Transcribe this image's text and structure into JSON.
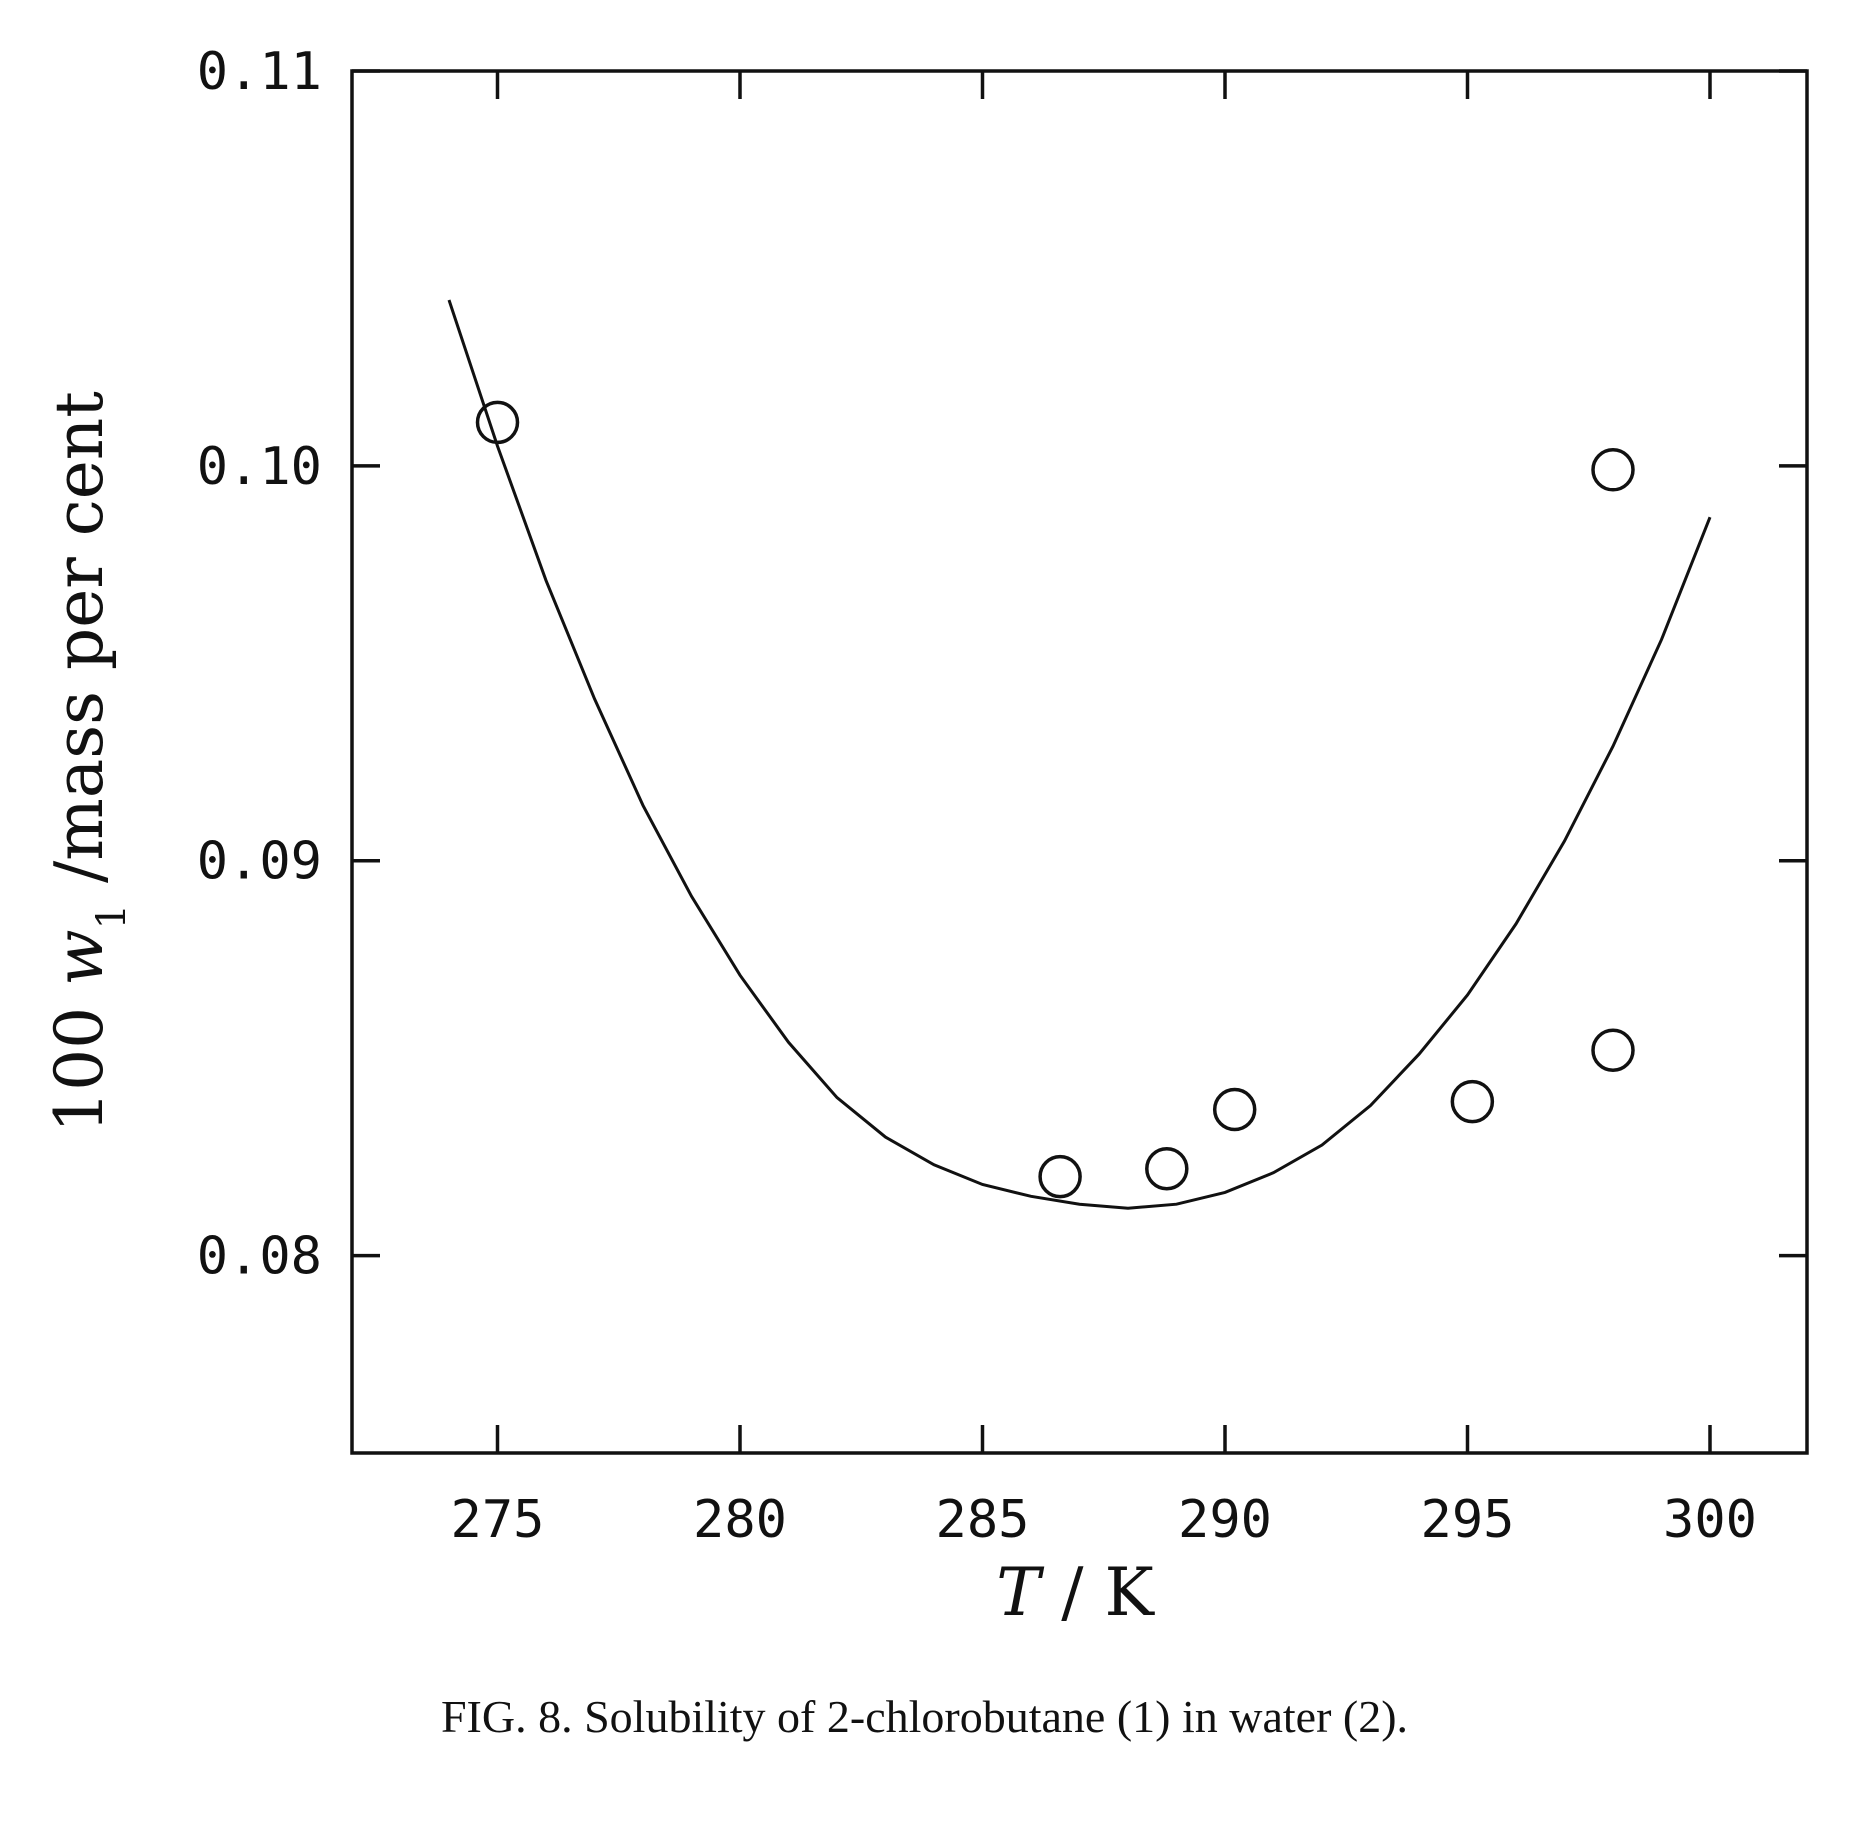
{
  "chart_data": {
    "type": "scatter",
    "x_axis": {
      "label_var": "T",
      "label_rest": " / K",
      "range": [
        272,
        302
      ],
      "ticks": [
        275,
        280,
        285,
        290,
        295,
        300
      ],
      "tick_labels": [
        "275",
        "280",
        "285",
        "290",
        "295",
        "300"
      ]
    },
    "y_axis": {
      "label_prefix": "100 ",
      "label_var": "w",
      "label_sub": "1",
      "label_rest": " /mass per cent",
      "range": [
        0.075,
        0.11
      ],
      "ticks": [
        0.08,
        0.09,
        0.1,
        0.11
      ],
      "tick_labels": [
        "0.08",
        "0.09",
        "0.10",
        "0.11"
      ]
    },
    "grid": false,
    "series": [
      {
        "kind": "points",
        "marker": "open-circle",
        "points": [
          {
            "x": 275.0,
            "y": 0.1011
          },
          {
            "x": 286.6,
            "y": 0.082
          },
          {
            "x": 288.8,
            "y": 0.0822
          },
          {
            "x": 290.2,
            "y": 0.0837
          },
          {
            "x": 295.1,
            "y": 0.0839
          },
          {
            "x": 298.0,
            "y": 0.0999
          },
          {
            "x": 298.0,
            "y": 0.0852
          }
        ]
      },
      {
        "kind": "curve",
        "style": "solid-line",
        "points": [
          {
            "x": 274.0,
            "y": 0.1042
          },
          {
            "x": 275.0,
            "y": 0.1005
          },
          {
            "x": 276.0,
            "y": 0.0971
          },
          {
            "x": 277.0,
            "y": 0.0941
          },
          {
            "x": 278.0,
            "y": 0.0914
          },
          {
            "x": 279.0,
            "y": 0.0891
          },
          {
            "x": 280.0,
            "y": 0.0871
          },
          {
            "x": 281.0,
            "y": 0.0854
          },
          {
            "x": 282.0,
            "y": 0.084
          },
          {
            "x": 283.0,
            "y": 0.083
          },
          {
            "x": 284.0,
            "y": 0.0823
          },
          {
            "x": 285.0,
            "y": 0.0818
          },
          {
            "x": 286.0,
            "y": 0.0815
          },
          {
            "x": 287.0,
            "y": 0.0813
          },
          {
            "x": 288.0,
            "y": 0.0812
          },
          {
            "x": 289.0,
            "y": 0.0813
          },
          {
            "x": 290.0,
            "y": 0.0816
          },
          {
            "x": 291.0,
            "y": 0.0821
          },
          {
            "x": 292.0,
            "y": 0.0828
          },
          {
            "x": 293.0,
            "y": 0.0838
          },
          {
            "x": 294.0,
            "y": 0.0851
          },
          {
            "x": 295.0,
            "y": 0.0866
          },
          {
            "x": 296.0,
            "y": 0.0884
          },
          {
            "x": 297.0,
            "y": 0.0905
          },
          {
            "x": 298.0,
            "y": 0.0929
          },
          {
            "x": 299.0,
            "y": 0.0956
          },
          {
            "x": 300.0,
            "y": 0.0987
          }
        ]
      }
    ]
  },
  "caption": "FIG. 8.  Solubility of 2-chlorobutane (1) in water (2)."
}
